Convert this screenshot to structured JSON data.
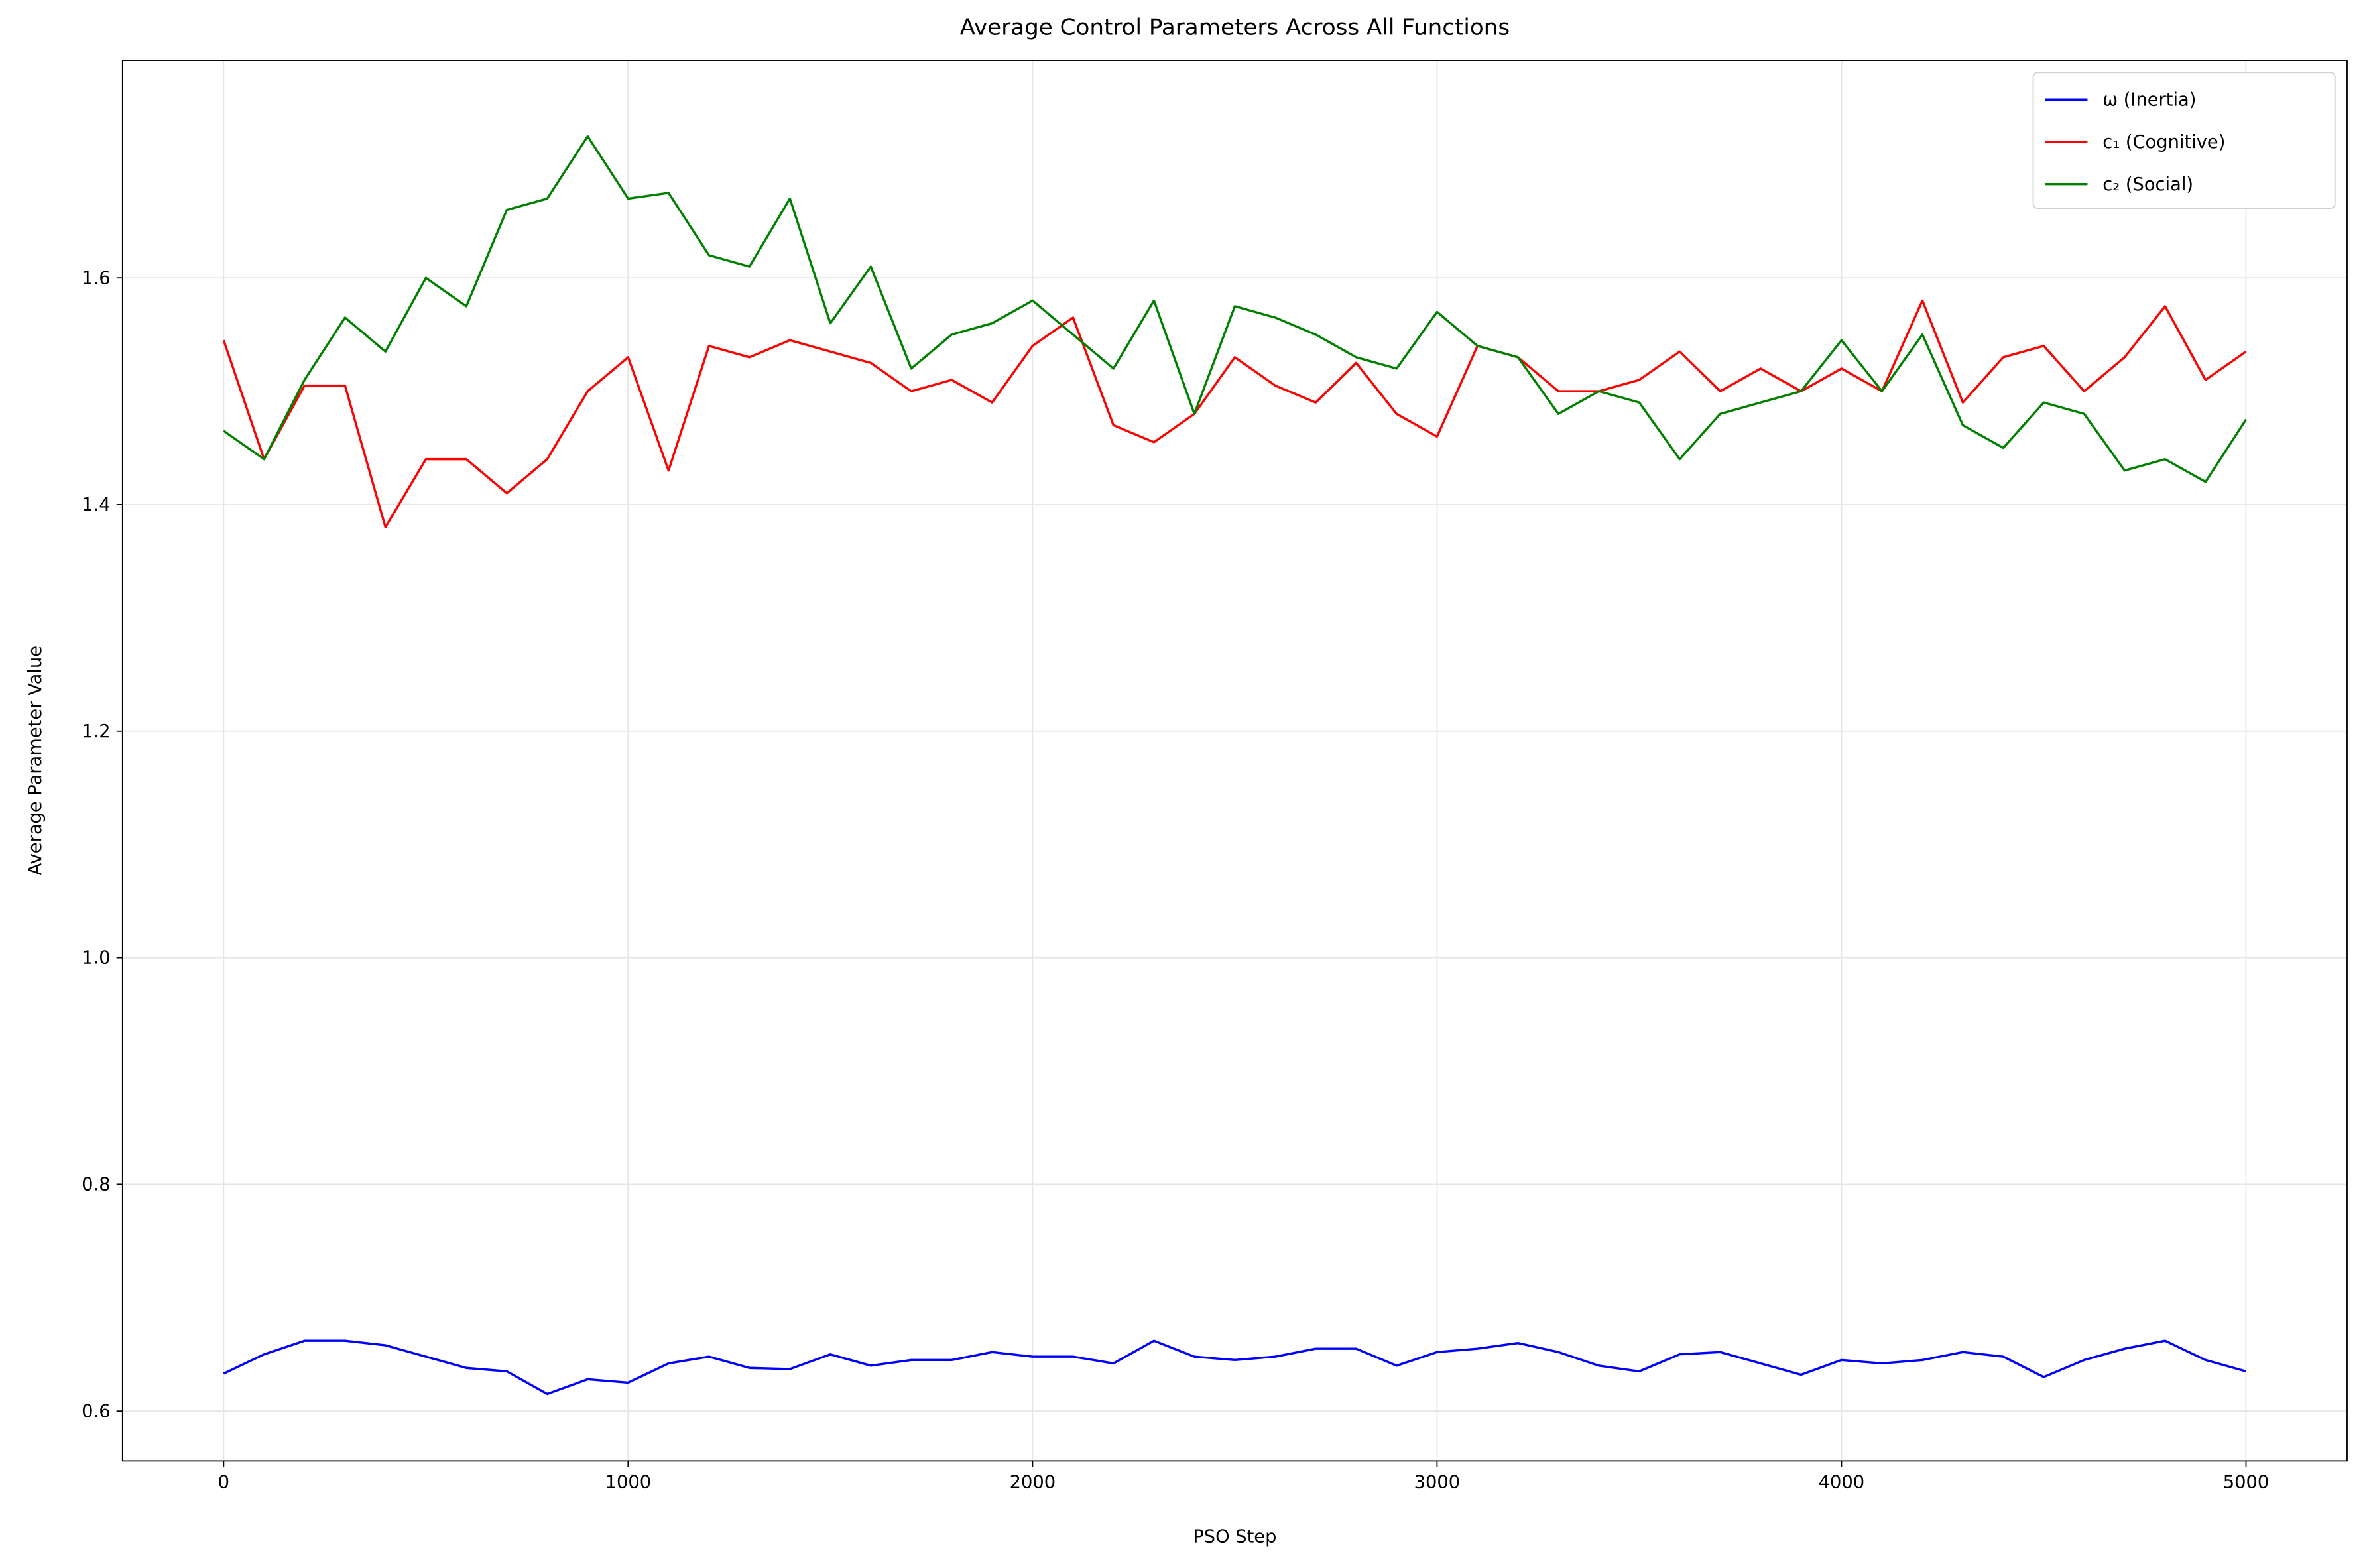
{
  "chart_data": {
    "type": "line",
    "title": "Average Control Parameters Across All Functions",
    "x_label": "PSO Step",
    "y_label": "Average Parameter Value",
    "x": [
      0,
      100,
      200,
      300,
      400,
      500,
      600,
      700,
      800,
      900,
      1000,
      1100,
      1200,
      1300,
      1400,
      1500,
      1600,
      1700,
      1800,
      1900,
      2000,
      2100,
      2200,
      2300,
      2400,
      2500,
      2600,
      2700,
      2800,
      2900,
      3000,
      3100,
      3200,
      3300,
      3400,
      3500,
      3600,
      3700,
      3800,
      3900,
      4000,
      4100,
      4200,
      4300,
      4400,
      4500,
      4600,
      4700,
      4800,
      4900,
      5000
    ],
    "series": [
      {
        "name": "ω (Inertia)",
        "color": "#0000ff",
        "values": [
          0.633,
          0.65,
          0.662,
          0.662,
          0.658,
          0.648,
          0.638,
          0.635,
          0.615,
          0.628,
          0.625,
          0.642,
          0.648,
          0.638,
          0.637,
          0.65,
          0.64,
          0.645,
          0.645,
          0.652,
          0.648,
          0.648,
          0.642,
          0.662,
          0.648,
          0.645,
          0.648,
          0.655,
          0.655,
          0.64,
          0.652,
          0.655,
          0.66,
          0.652,
          0.64,
          0.635,
          0.65,
          0.652,
          0.642,
          0.632,
          0.645,
          0.642,
          0.645,
          0.652,
          0.648,
          0.63,
          0.645,
          0.655,
          0.662,
          0.645,
          0.635
        ]
      },
      {
        "name": "c₁ (Cognitive)",
        "color": "#ff0000",
        "values": [
          1.545,
          1.44,
          1.505,
          1.505,
          1.38,
          1.44,
          1.44,
          1.41,
          1.44,
          1.5,
          1.53,
          1.43,
          1.54,
          1.53,
          1.545,
          1.535,
          1.525,
          1.5,
          1.51,
          1.49,
          1.54,
          1.565,
          1.47,
          1.455,
          1.48,
          1.53,
          1.505,
          1.49,
          1.525,
          1.48,
          1.46,
          1.54,
          1.53,
          1.5,
          1.5,
          1.51,
          1.535,
          1.5,
          1.52,
          1.5,
          1.52,
          1.5,
          1.58,
          1.49,
          1.53,
          1.54,
          1.5,
          1.53,
          1.575,
          1.51,
          1.535
        ]
      },
      {
        "name": "c₂ (Social)",
        "color": "#008000",
        "values": [
          1.465,
          1.44,
          1.51,
          1.565,
          1.535,
          1.6,
          1.575,
          1.66,
          1.67,
          1.725,
          1.67,
          1.675,
          1.62,
          1.61,
          1.67,
          1.56,
          1.61,
          1.52,
          1.55,
          1.56,
          1.58,
          1.55,
          1.52,
          1.58,
          1.48,
          1.575,
          1.565,
          1.55,
          1.53,
          1.52,
          1.57,
          1.54,
          1.53,
          1.48,
          1.5,
          1.49,
          1.44,
          1.48,
          1.49,
          1.5,
          1.545,
          1.5,
          1.55,
          1.47,
          1.45,
          1.49,
          1.48,
          1.43,
          1.44,
          1.42,
          1.475
        ]
      }
    ],
    "xlim": [
      -250,
      5250
    ],
    "ylim": [
      0.556,
      1.792
    ],
    "xticks": [
      0,
      1000,
      2000,
      3000,
      4000,
      5000
    ],
    "yticks": [
      0.6,
      0.8,
      {
        "value": 1,
        "label": "1.0"
      },
      1.2,
      1.4,
      1.6
    ],
    "grid": true,
    "legend": "upper right"
  }
}
